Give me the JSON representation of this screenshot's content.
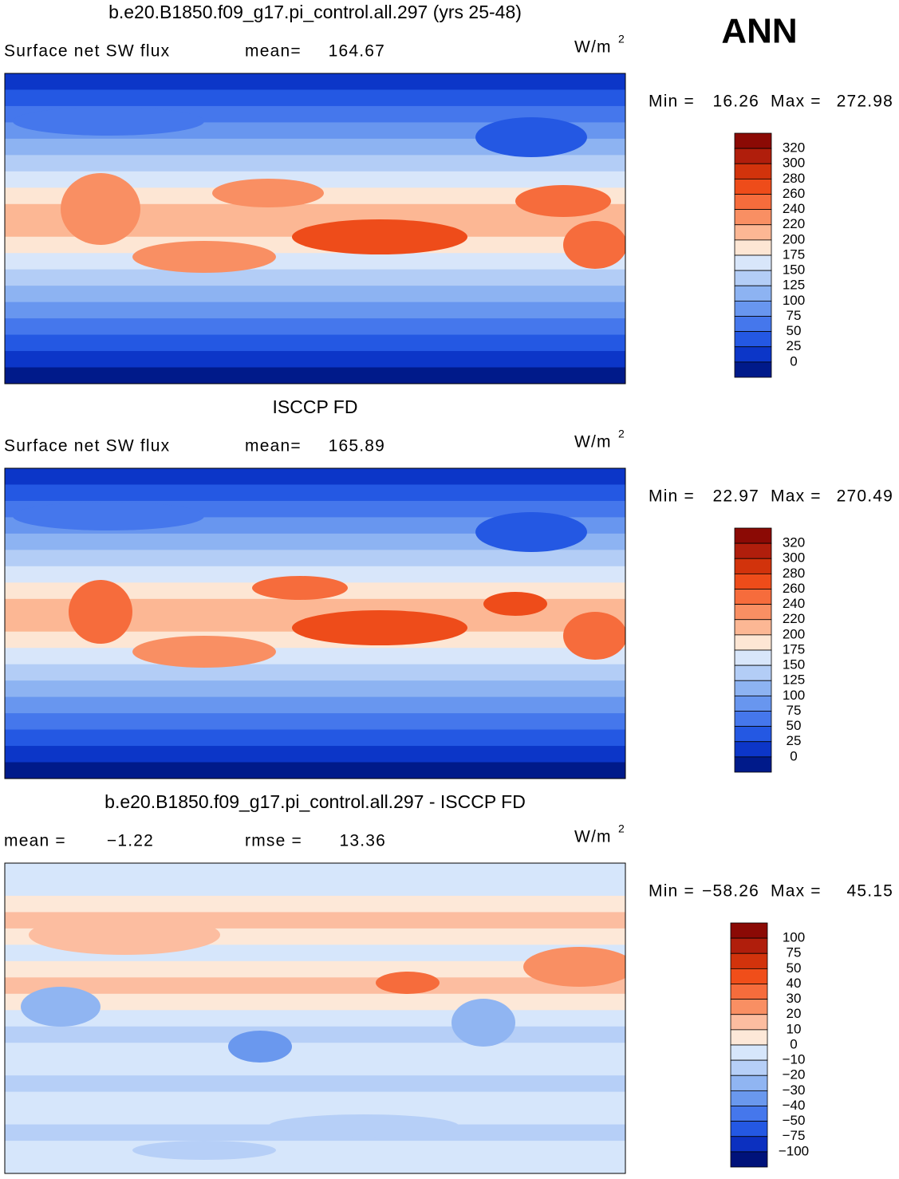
{
  "header": {
    "season": "ANN"
  },
  "panels": [
    {
      "title": "b.e20.B1850.f09_g17.pi_control.all.297 (yrs 25-48)",
      "variable": "Surface net SW flux",
      "stat1_label": "mean=",
      "stat1": 164.67,
      "units": "W/m",
      "units_exp": "2",
      "min_label": "Min =",
      "min": 16.26,
      "max_label": "Max =",
      "max": 272.98,
      "colorbar": {
        "labels": [
          320,
          300,
          280,
          260,
          240,
          220,
          200,
          175,
          150,
          125,
          100,
          75,
          50,
          25,
          0
        ],
        "colors": [
          "#8b0a05",
          "#b01e0c",
          "#d2330c",
          "#ee4c1a",
          "#f66c3c",
          "#f98f63",
          "#fcb794",
          "#fde6d4",
          "#d8e6fa",
          "#b3cdf6",
          "#8db3f2",
          "#6896ef",
          "#4577ec",
          "#2458e3",
          "#0c36c8",
          "#001a8a"
        ]
      }
    },
    {
      "title": "ISCCP FD",
      "variable": "Surface net SW flux",
      "stat1_label": "mean=",
      "stat1": 165.89,
      "units": "W/m",
      "units_exp": "2",
      "min_label": "Min =",
      "min": 22.97,
      "max_label": "Max =",
      "max": 270.49,
      "colorbar": {
        "labels": [
          320,
          300,
          280,
          260,
          240,
          220,
          200,
          175,
          150,
          125,
          100,
          75,
          50,
          25,
          0
        ],
        "colors": [
          "#8b0a05",
          "#b01e0c",
          "#d2330c",
          "#ee4c1a",
          "#f66c3c",
          "#f98f63",
          "#fcb794",
          "#fde6d4",
          "#d8e6fa",
          "#b3cdf6",
          "#8db3f2",
          "#6896ef",
          "#4577ec",
          "#2458e3",
          "#0c36c8",
          "#001a8a"
        ]
      }
    },
    {
      "title": "b.e20.B1850.f09_g17.pi_control.all.297 - ISCCP FD",
      "stat1_label": "mean =",
      "stat1": "−1.22",
      "stat2_label": "rmse =",
      "stat2": 13.36,
      "units": "W/m",
      "units_exp": "2",
      "min_label": "Min =",
      "min": "−58.26",
      "max_label": "Max =",
      "max": 45.15,
      "colorbar": {
        "labels": [
          100,
          75,
          50,
          40,
          30,
          20,
          10,
          0,
          "−10",
          "−20",
          "−30",
          "−40",
          "−50",
          "−75",
          "−100"
        ],
        "colors": [
          "#8b0a05",
          "#b01e0c",
          "#d2330c",
          "#f04e1a",
          "#f66c3c",
          "#f98f63",
          "#fcbda0",
          "#fde8d8",
          "#d6e6fb",
          "#b6cff7",
          "#90b5f2",
          "#6a98ee",
          "#4577ec",
          "#2458e3",
          "#0c30c0",
          "#00127a"
        ]
      }
    }
  ]
}
